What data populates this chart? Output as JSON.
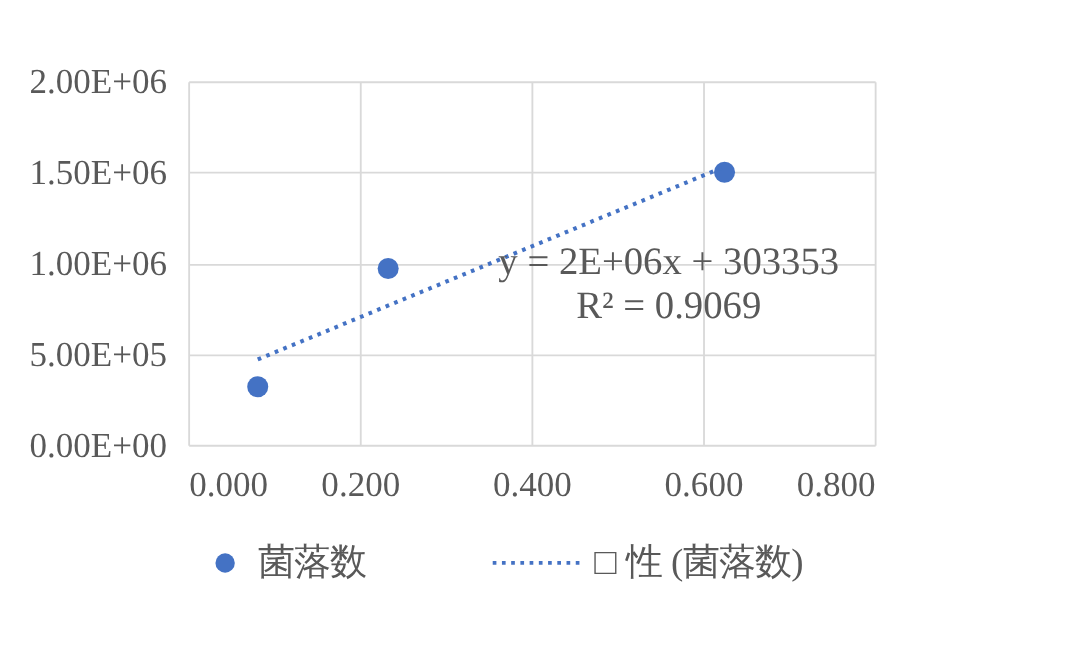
{
  "chart_data": {
    "type": "scatter",
    "series": [
      {
        "name": "菌落数",
        "color": "#4472c4",
        "marker": "circle",
        "x": [
          0.081,
          0.233,
          0.625
        ],
        "values": [
          320000,
          970000,
          1500000
        ]
      },
      {
        "name": "□ 性 (菌落数)",
        "type": "line",
        "color": "#4472c4",
        "line_style": "dotted",
        "x": [
          0.081,
          0.625
        ],
        "values": [
          470000,
          1530000
        ]
      }
    ],
    "annotations": [
      "y = 2E+06x + 303353",
      "R² = 0.9069"
    ],
    "xlim": [
      0,
      0.8
    ],
    "xticks": [
      {
        "value": 0,
        "label": "0.000"
      },
      {
        "value": 0.2,
        "label": "0.200"
      },
      {
        "value": 0.4,
        "label": "0.400"
      },
      {
        "value": 0.6,
        "label": "0.600"
      },
      {
        "value": 0.8,
        "label": "0.800"
      }
    ],
    "ylim": [
      0,
      2000000
    ],
    "yticks": [
      {
        "value": 0,
        "label": "0.00E+00"
      },
      {
        "value": 500000,
        "label": "5.00E+05"
      },
      {
        "value": 1000000,
        "label": "1.00E+06"
      },
      {
        "value": 1500000,
        "label": "1.50E+06"
      },
      {
        "value": 2000000,
        "label": "2.00E+06"
      }
    ],
    "grid": true,
    "legend": "bottom"
  }
}
